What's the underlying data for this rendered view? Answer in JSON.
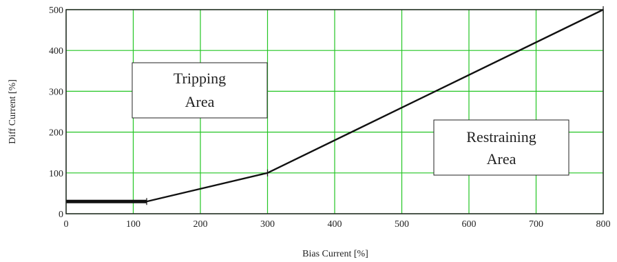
{
  "chart_data": {
    "type": "line",
    "xlabel": "Bias Current [%]",
    "ylabel": "Diff Current [%]",
    "xlim": [
      0,
      800
    ],
    "ylim": [
      0,
      500
    ],
    "x_ticks": [
      0,
      100,
      200,
      300,
      400,
      500,
      600,
      700,
      800
    ],
    "y_ticks": [
      0,
      100,
      200,
      300,
      400,
      500
    ],
    "grid": true,
    "colors": {
      "grid": "#22c522",
      "line": "#111111",
      "frame": "#222222"
    },
    "series": [
      {
        "name": "",
        "x": [
          0,
          120,
          300,
          800
        ],
        "y": [
          30,
          30,
          100,
          500
        ]
      }
    ],
    "annotations": [
      {
        "id": "tripping",
        "lines": [
          "Tripping",
          "Area"
        ]
      },
      {
        "id": "restraining",
        "lines": [
          "Restraining",
          "Area"
        ]
      }
    ]
  }
}
